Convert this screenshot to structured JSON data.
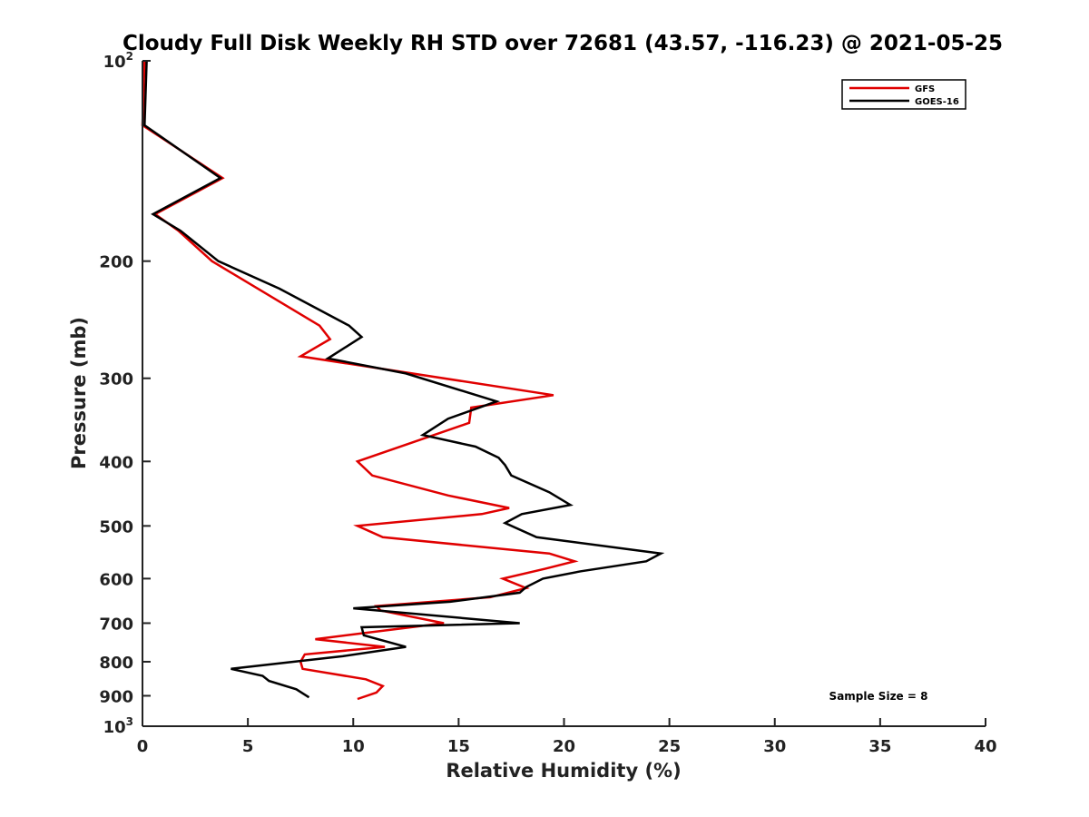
{
  "chart_data": {
    "type": "line",
    "title": "Cloudy Full Disk Weekly RH STD over 72681 (43.57, -116.23) @ 2021-05-25",
    "xlabel": "Relative Humidity (%)",
    "ylabel": "Pressure (mb)",
    "xlim": [
      0,
      40
    ],
    "ylim": [
      100,
      1000
    ],
    "yscale": "log",
    "y_reversed": true,
    "grid": false,
    "legend_position": "top-right",
    "x_ticks": [
      0,
      5,
      10,
      15,
      20,
      25,
      30,
      35,
      40
    ],
    "y_ticks": [
      {
        "value": 100,
        "base": "10",
        "exp": "2"
      },
      {
        "value": 200,
        "label": "200"
      },
      {
        "value": 300,
        "label": "300"
      },
      {
        "value": 400,
        "label": "400"
      },
      {
        "value": 500,
        "label": "500"
      },
      {
        "value": 600,
        "label": "600"
      },
      {
        "value": 700,
        "label": "700"
      },
      {
        "value": 800,
        "label": "800"
      },
      {
        "value": 900,
        "label": "900"
      },
      {
        "value": 1000,
        "base": "10",
        "exp": "3"
      }
    ],
    "annotation": "Sample Size = 8",
    "series": [
      {
        "name": "GFS",
        "color": "#e00000",
        "points": [
          [
            0.1,
            100
          ],
          [
            0.0,
            125
          ],
          [
            3.8,
            150
          ],
          [
            0.6,
            170
          ],
          [
            1.7,
            180
          ],
          [
            3.3,
            200
          ],
          [
            8.4,
            250
          ],
          [
            8.9,
            262
          ],
          [
            7.5,
            278
          ],
          [
            19.5,
            318
          ],
          [
            15.6,
            332
          ],
          [
            15.5,
            350
          ],
          [
            10.2,
            400
          ],
          [
            10.9,
            420
          ],
          [
            14.5,
            450
          ],
          [
            17.4,
            470
          ],
          [
            16.1,
            480
          ],
          [
            10.2,
            500
          ],
          [
            11.4,
            520
          ],
          [
            19.3,
            550
          ],
          [
            20.5,
            565
          ],
          [
            19.1,
            580
          ],
          [
            17.1,
            600
          ],
          [
            18.2,
            620
          ],
          [
            16.5,
            640
          ],
          [
            11.1,
            660
          ],
          [
            11.3,
            670
          ],
          [
            14.3,
            700
          ],
          [
            8.2,
            740
          ],
          [
            11.5,
            760
          ],
          [
            7.7,
            780
          ],
          [
            7.5,
            800
          ],
          [
            7.6,
            820
          ],
          [
            10.6,
            850
          ],
          [
            11.4,
            870
          ],
          [
            11.1,
            890
          ],
          [
            10.2,
            910
          ]
        ]
      },
      {
        "name": "GOES-16",
        "color": "#000000",
        "points": [
          [
            0.2,
            100
          ],
          [
            0.1,
            125
          ],
          [
            3.7,
            150
          ],
          [
            0.5,
            170
          ],
          [
            1.8,
            180
          ],
          [
            3.6,
            200
          ],
          [
            6.5,
            220
          ],
          [
            9.8,
            250
          ],
          [
            10.4,
            260
          ],
          [
            8.8,
            280
          ],
          [
            12.5,
            295
          ],
          [
            16.8,
            325
          ],
          [
            14.5,
            345
          ],
          [
            13.3,
            365
          ],
          [
            15.8,
            380
          ],
          [
            16.9,
            395
          ],
          [
            17.2,
            405
          ],
          [
            17.5,
            420
          ],
          [
            19.3,
            445
          ],
          [
            20.3,
            465
          ],
          [
            18.0,
            480
          ],
          [
            17.2,
            495
          ],
          [
            18.7,
            520
          ],
          [
            24.6,
            550
          ],
          [
            23.9,
            565
          ],
          [
            20.8,
            585
          ],
          [
            19.0,
            600
          ],
          [
            18.2,
            618
          ],
          [
            17.9,
            630
          ],
          [
            14.6,
            650
          ],
          [
            10.0,
            665
          ],
          [
            17.9,
            700
          ],
          [
            10.4,
            710
          ],
          [
            10.5,
            730
          ],
          [
            12.5,
            760
          ],
          [
            9.5,
            785
          ],
          [
            4.2,
            820
          ],
          [
            5.7,
            840
          ],
          [
            6.0,
            855
          ],
          [
            7.3,
            880
          ],
          [
            7.9,
            905
          ]
        ]
      }
    ]
  }
}
